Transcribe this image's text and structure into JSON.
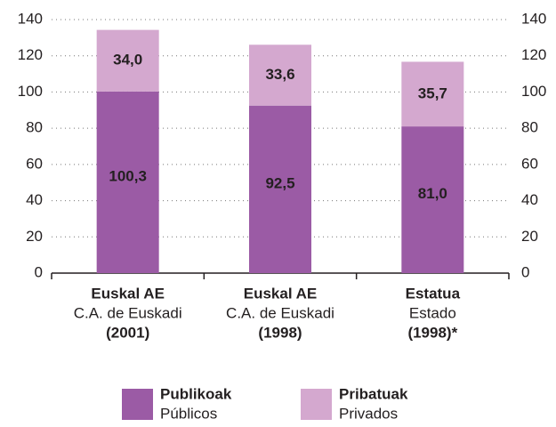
{
  "chart_data": {
    "type": "stacked_bar",
    "categories": [
      [
        "Euskal AE",
        "C.A. de Euskadi",
        "(2001)"
      ],
      [
        "Euskal AE",
        "C.A. de Euskadi",
        "(1998)"
      ],
      [
        "Estatua",
        "Estado",
        "(1998)*"
      ]
    ],
    "series": [
      {
        "name": [
          "Publikoak",
          "Públicos"
        ],
        "color": "#9b5ba5",
        "values": [
          100.3,
          92.5,
          81.0
        ],
        "value_labels": [
          "100,3",
          "92,5",
          "81,0"
        ]
      },
      {
        "name": [
          "Pribatuak",
          "Privados"
        ],
        "color": "#d4a8cf",
        "values": [
          34.0,
          33.6,
          35.7
        ],
        "value_labels": [
          "34,0",
          "33,6",
          "35,7"
        ]
      }
    ],
    "ylim": [
      0,
      140
    ],
    "yticks": [
      0,
      20,
      40,
      60,
      80,
      100,
      120,
      140
    ],
    "y2lim": [
      0,
      140
    ],
    "y2ticks": [
      0,
      20,
      40,
      60,
      80,
      100,
      120,
      140
    ],
    "grid": true
  }
}
